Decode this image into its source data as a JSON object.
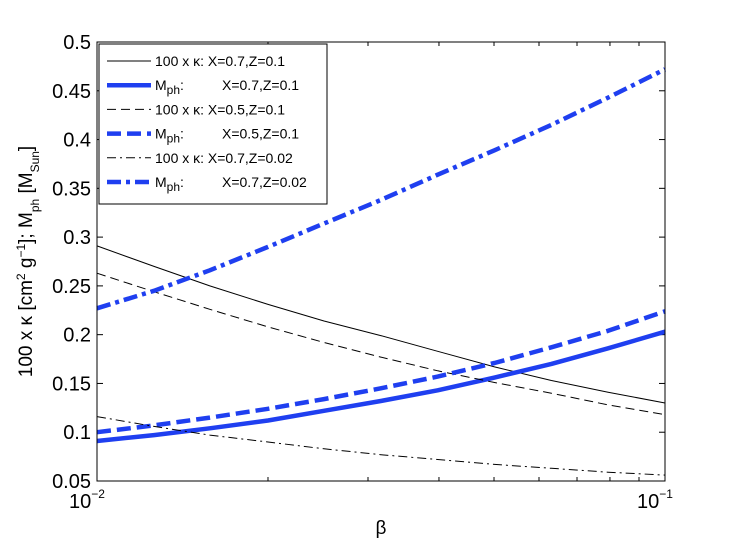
{
  "chart_data": {
    "type": "line",
    "xscale": "log",
    "xlim": [
      0.01,
      0.1
    ],
    "ylim": [
      0.05,
      0.5
    ],
    "xlabel": "β",
    "ylabel": "100 x κ [cm2 g−1]; Mph [MSun]",
    "ylabel_parts": {
      "a": "100 x κ [cm",
      "a_sup": "2",
      "b": " g",
      "b_sup": "−1",
      "c": "]; M",
      "c_sub": "ph",
      "d": " [M",
      "d_sub": "Sun",
      "e": "]"
    },
    "x_ticks": [
      {
        "value": 0.01,
        "base": "10",
        "exp": "−2"
      },
      {
        "value": 0.1,
        "base": "10",
        "exp": "−1"
      }
    ],
    "y_ticks": [
      {
        "value": 0.05,
        "label": "0.05"
      },
      {
        "value": 0.1,
        "label": "0.1"
      },
      {
        "value": 0.15,
        "label": "0.15"
      },
      {
        "value": 0.2,
        "label": "0.2"
      },
      {
        "value": 0.25,
        "label": "0.25"
      },
      {
        "value": 0.3,
        "label": "0.3"
      },
      {
        "value": 0.35,
        "label": "0.35"
      },
      {
        "value": 0.4,
        "label": "0.4"
      },
      {
        "value": 0.45,
        "label": "0.45"
      },
      {
        "value": 0.5,
        "label": "0.5"
      }
    ],
    "legend_position": "top-left",
    "series": [
      {
        "name": "100 x κ: X=0.7,Z=0.1",
        "label_prefix": "100 x κ:",
        "label_params": "X=0.7,Z=0.1",
        "color": "#000000",
        "style": "solid",
        "width": "thin",
        "x": [
          0.01,
          0.0126,
          0.0158,
          0.02,
          0.0251,
          0.0316,
          0.0398,
          0.0501,
          0.0631,
          0.0794,
          0.1
        ],
        "y": [
          0.291,
          0.27,
          0.25,
          0.231,
          0.214,
          0.199,
          0.183,
          0.167,
          0.153,
          0.141,
          0.13
        ]
      },
      {
        "name": "Mph: X=0.7,Z=0.1",
        "label_prefix": "M",
        "label_sub": "ph",
        "label_params": "X=0.7,Z=0.1",
        "color": "#1f3ff0",
        "style": "solid",
        "width": "thick",
        "x": [
          0.01,
          0.0126,
          0.0158,
          0.02,
          0.0251,
          0.0316,
          0.0398,
          0.0501,
          0.0631,
          0.0794,
          0.1
        ],
        "y": [
          0.091,
          0.097,
          0.104,
          0.112,
          0.122,
          0.132,
          0.143,
          0.156,
          0.17,
          0.186,
          0.203
        ]
      },
      {
        "name": "100 x κ: X=0.5,Z=0.1",
        "label_prefix": "100 x κ:",
        "label_params": "X=0.5,Z=0.1",
        "color": "#000000",
        "style": "dashed",
        "width": "thin",
        "x": [
          0.01,
          0.0126,
          0.0158,
          0.02,
          0.0251,
          0.0316,
          0.0398,
          0.0501,
          0.0631,
          0.0794,
          0.1
        ],
        "y": [
          0.263,
          0.244,
          0.226,
          0.208,
          0.192,
          0.177,
          0.163,
          0.151,
          0.14,
          0.128,
          0.118
        ]
      },
      {
        "name": "Mph: X=0.5,Z=0.1",
        "label_prefix": "M",
        "label_sub": "ph",
        "label_params": "X=0.5,Z=0.1",
        "color": "#1f3ff0",
        "style": "dashed",
        "width": "thick",
        "x": [
          0.01,
          0.0126,
          0.0158,
          0.02,
          0.0251,
          0.0316,
          0.0398,
          0.0501,
          0.0631,
          0.0794,
          0.1
        ],
        "y": [
          0.1,
          0.107,
          0.115,
          0.124,
          0.134,
          0.145,
          0.157,
          0.171,
          0.187,
          0.204,
          0.224
        ]
      },
      {
        "name": "100 x κ: X=0.7,Z=0.02",
        "label_prefix": "100 x κ:",
        "label_params": "X=0.7,Z=0.02",
        "color": "#000000",
        "style": "dashdot",
        "width": "thin",
        "x": [
          0.01,
          0.0126,
          0.0158,
          0.02,
          0.0251,
          0.0316,
          0.0398,
          0.0501,
          0.0631,
          0.0794,
          0.1
        ],
        "y": [
          0.116,
          0.106,
          0.097,
          0.09,
          0.083,
          0.077,
          0.072,
          0.067,
          0.063,
          0.059,
          0.056
        ]
      },
      {
        "name": "Mph: X=0.7,Z=0.02",
        "label_prefix": "M",
        "label_sub": "ph",
        "label_params": "X=0.7,Z=0.02",
        "color": "#1f3ff0",
        "style": "dashdot",
        "width": "thick",
        "x": [
          0.01,
          0.0126,
          0.0158,
          0.02,
          0.0251,
          0.0316,
          0.0398,
          0.0501,
          0.0631,
          0.0794,
          0.1
        ],
        "y": [
          0.227,
          0.245,
          0.266,
          0.29,
          0.314,
          0.338,
          0.364,
          0.389,
          0.415,
          0.443,
          0.472
        ]
      }
    ]
  }
}
